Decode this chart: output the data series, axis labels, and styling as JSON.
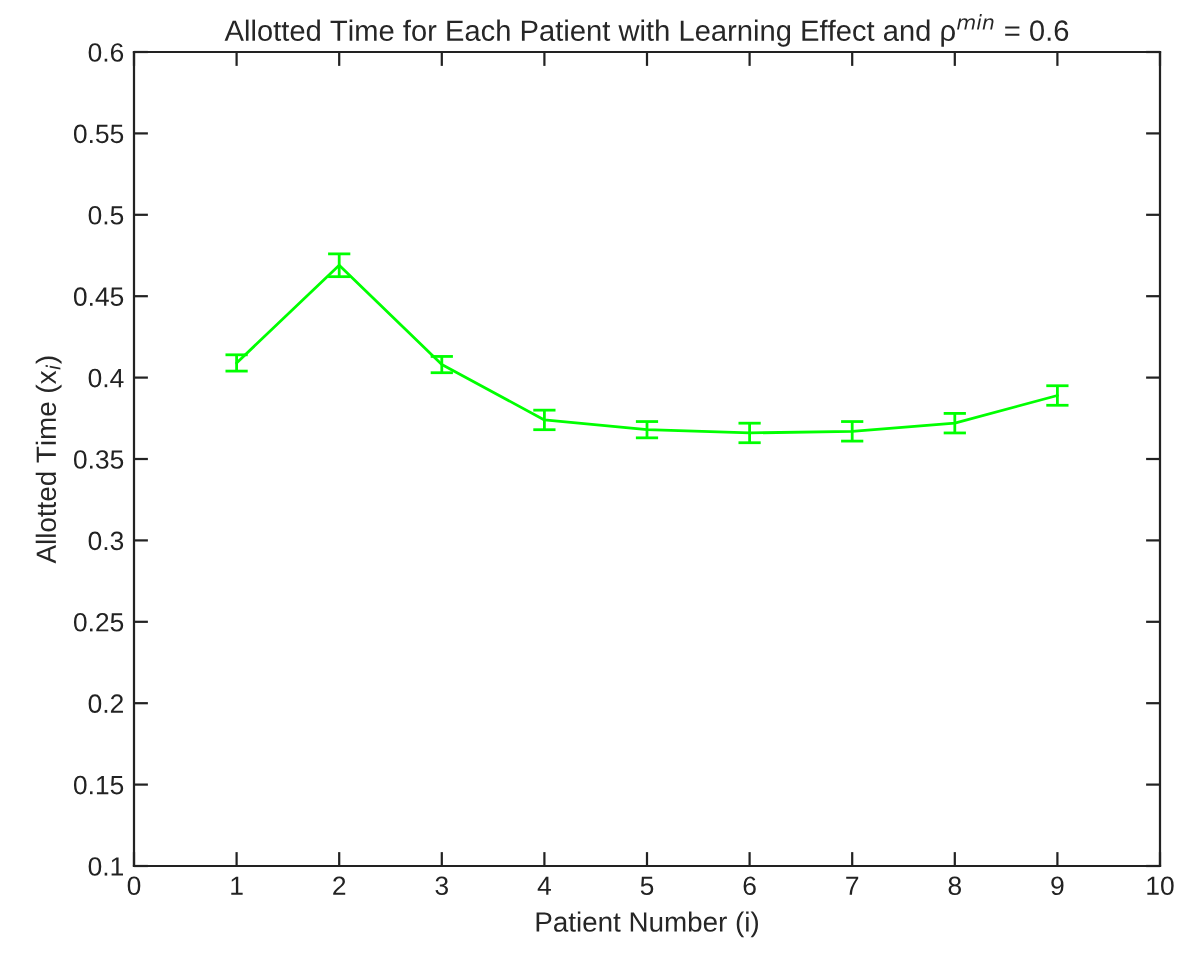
{
  "chart_data": {
    "type": "line",
    "title": "Allotted Time for Each Patient with Learning Effect and ρ$^{min}$ = 0.6",
    "xlabel": "Patient Number (i)",
    "ylabel": "Allotted Time (x$_{i}$)",
    "x": [
      1,
      2,
      3,
      4,
      5,
      6,
      7,
      8,
      9
    ],
    "series": [
      {
        "color": "#00ff00",
        "values": [
          0.409,
          0.469,
          0.408,
          0.374,
          0.368,
          0.366,
          0.367,
          0.372,
          0.389
        ],
        "errors": [
          0.005,
          0.007,
          0.005,
          0.006,
          0.005,
          0.006,
          0.006,
          0.006,
          0.006
        ]
      }
    ],
    "xlim": [
      0,
      10
    ],
    "xticks": [
      0,
      1,
      2,
      3,
      4,
      5,
      6,
      7,
      8,
      9,
      10
    ],
    "ylim": [
      0.1,
      0.6
    ],
    "yticks": [
      0.1,
      0.15,
      0.2,
      0.25,
      0.3,
      0.35,
      0.4,
      0.45,
      0.5,
      0.55,
      0.6
    ],
    "grid": false,
    "marker": "none",
    "line_style": "solid"
  }
}
